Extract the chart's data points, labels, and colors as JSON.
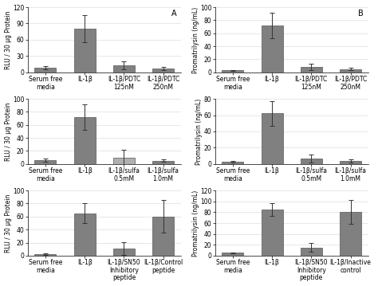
{
  "panels": [
    {
      "label": "A",
      "ylabel": "RLU / 30 μg Protein",
      "ylim": [
        0,
        120
      ],
      "yticks": [
        0,
        30,
        60,
        90,
        120
      ],
      "categories": [
        "Serum free\nmedia",
        "IL-1β",
        "IL-1β/PDTC\n125nM",
        "IL-1β/PDTC\n250nM"
      ],
      "values": [
        8,
        80,
        13,
        7
      ],
      "errors": [
        3,
        25,
        7,
        3
      ]
    },
    {
      "label": "B",
      "ylabel": "Promatrilysin (ng/mL)",
      "ylim": [
        0,
        100
      ],
      "yticks": [
        0,
        20,
        40,
        60,
        80,
        100
      ],
      "categories": [
        "Serum free\nmedia",
        "IL-1β",
        "IL-1β/PDTC\n125nM",
        "IL-1β/PDTC\n250nM"
      ],
      "values": [
        3,
        72,
        8,
        5
      ],
      "errors": [
        1,
        20,
        5,
        2
      ]
    },
    {
      "label": "",
      "ylabel": "RLU / 30 μg Protein",
      "ylim": [
        0,
        100
      ],
      "yticks": [
        0,
        20,
        40,
        60,
        80,
        100
      ],
      "categories": [
        "Serum free\nmedia",
        "IL-1β",
        "IL-1β/sulfa\n0.5mM",
        "IL-1β/sulfa\n1.0mM"
      ],
      "values": [
        6,
        72,
        10,
        5
      ],
      "errors": [
        2,
        20,
        12,
        2
      ],
      "bar_colors": [
        "#808080",
        "#808080",
        "#b0b0b0",
        "#808080"
      ]
    },
    {
      "label": "",
      "ylabel": "Promatrilysin (ng/mL)",
      "ylim": [
        0,
        80
      ],
      "yticks": [
        0,
        20,
        40,
        60,
        80
      ],
      "categories": [
        "Serum free\nmedia",
        "IL-1β",
        "IL-1β/sulfa\n0.5mM",
        "IL-1β/sulfa\n1.0mM"
      ],
      "values": [
        3,
        62,
        7,
        4
      ],
      "errors": [
        1,
        15,
        5,
        2
      ]
    },
    {
      "label": "",
      "ylabel": "RLU / 30 μg Protein",
      "ylim": [
        0,
        100
      ],
      "yticks": [
        0,
        20,
        40,
        60,
        80,
        100
      ],
      "categories": [
        "Serum free\nmedia",
        "IL-1β",
        "IL-1β/SN50\nInhibitory\npeptide",
        "IL-1β/Control\npeptide"
      ],
      "values": [
        2,
        65,
        11,
        60
      ],
      "errors": [
        1,
        15,
        10,
        25
      ]
    },
    {
      "label": "",
      "ylabel": "Promatrilysin (ng/mL)",
      "ylim": [
        0,
        120
      ],
      "yticks": [
        0,
        20,
        40,
        60,
        80,
        100,
        120
      ],
      "categories": [
        "Serum free\nmedia",
        "IL-1β",
        "IL-1β/SN50\nInhibitory\npeptide",
        "IL-1β/Inactive\ncontrol"
      ],
      "values": [
        5,
        85,
        15,
        80
      ],
      "errors": [
        1,
        12,
        8,
        22
      ]
    }
  ],
  "bar_color": "#808080",
  "bar_edge_color": "#555555",
  "bg_color": "#ffffff",
  "grid_color": "#dddddd",
  "fontsize_label": 5.5,
  "fontsize_tick": 5.5,
  "fontsize_panel_label": 7
}
